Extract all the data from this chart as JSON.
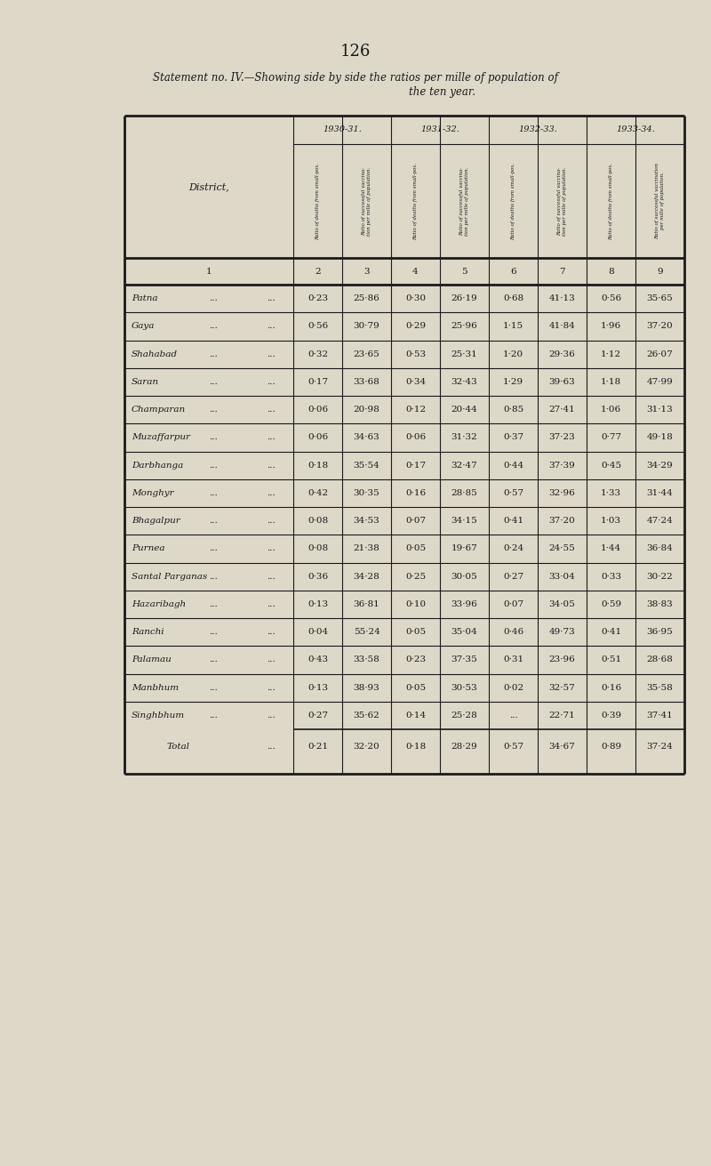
{
  "page_number": "126",
  "title_line1": "Statement no. IV.—Showing side by side the ratios per mille of population of",
  "title_line2": "the ten year.",
  "bg_color": "#ddd8c8",
  "col_headers_year": [
    "1930-31.",
    "1931-32.",
    "1932-33.",
    "1933-34."
  ],
  "col_headers_sub": [
    "Ratio of deaths from small-pox.",
    "Ratio of successful vaccination per mille of population.",
    "Ratio of deaths from small-pox.",
    "Ratio of successful vaccina-\ntion per mille of population.",
    "Ratio of deaths from small-pox.",
    "Ratio of successful vaccina-\ntion per mille of population.",
    "Ratio of deaths from small-pox.",
    "Ratio of successful vaccination\nper mile of population."
  ],
  "districts": [
    "Patna",
    "Gaya",
    "Shahabad",
    "Saran",
    "Champaran",
    "Muzaffarpur",
    "Darbhanga",
    "Monghyr",
    "Bhagalpur",
    "Purnea",
    "Santal Parganas",
    "Hazaribagh",
    "Ranchi",
    "Palamau",
    "Manbhum",
    "Singhbhum"
  ],
  "data": [
    [
      "0·23",
      "25·86",
      "0·30",
      "26·19",
      "0·68",
      "41·13",
      "0·56",
      "35·65"
    ],
    [
      "0·56",
      "30·79",
      "0·29",
      "25·96",
      "1·15",
      "41·84",
      "1·96",
      "37·20"
    ],
    [
      "0·32",
      "23·65",
      "0·53",
      "25·31",
      "1·20",
      "29·36",
      "1·12",
      "26·07"
    ],
    [
      "0·17",
      "33·68",
      "0·34",
      "32·43",
      "1·29",
      "39·63",
      "1·18",
      "47·99"
    ],
    [
      "0·06",
      "20·98",
      "0·12",
      "20·44",
      "0·85",
      "27·41",
      "1·06",
      "31·13"
    ],
    [
      "0·06",
      "34·63",
      "0·06",
      "31·32",
      "0·37",
      "37·23",
      "0·77",
      "49·18"
    ],
    [
      "0·18",
      "35·54",
      "0·17",
      "32·47",
      "0·44",
      "37·39",
      "0·45",
      "34·29"
    ],
    [
      "0·42",
      "30·35",
      "0·16",
      "28·85",
      "0·57",
      "32·96",
      "1·33",
      "31·44"
    ],
    [
      "0·08",
      "34·53",
      "0·07",
      "34·15",
      "0·41",
      "37·20",
      "1·03",
      "47·24"
    ],
    [
      "0·08",
      "21·38",
      "0·05",
      "19·67",
      "0·24",
      "24·55",
      "1·44",
      "36·84"
    ],
    [
      "0·36",
      "34·28",
      "0·25",
      "30·05",
      "0·27",
      "33·04",
      "0·33",
      "30·22"
    ],
    [
      "0·13",
      "36·81",
      "0·10",
      "33·96",
      "0·07",
      "34·05",
      "0·59",
      "38·83"
    ],
    [
      "0·04",
      "55·24",
      "0·05",
      "35·04",
      "0·46",
      "49·73",
      "0·41",
      "36·95"
    ],
    [
      "0·43",
      "33·58",
      "0·23",
      "37·35",
      "0·31",
      "23·96",
      "0·51",
      "28·68"
    ],
    [
      "0·13",
      "38·93",
      "0·05",
      "30·53",
      "0·02",
      "32·57",
      "0·16",
      "35·58"
    ],
    [
      "0·27",
      "35·62",
      "0·14",
      "25·28",
      "...",
      "22·71",
      "0·39",
      "37·41"
    ]
  ],
  "total_row": [
    "0·21",
    "32·20",
    "0·18",
    "28·29",
    "0·57",
    "34·67",
    "0·89",
    "37·24"
  ]
}
